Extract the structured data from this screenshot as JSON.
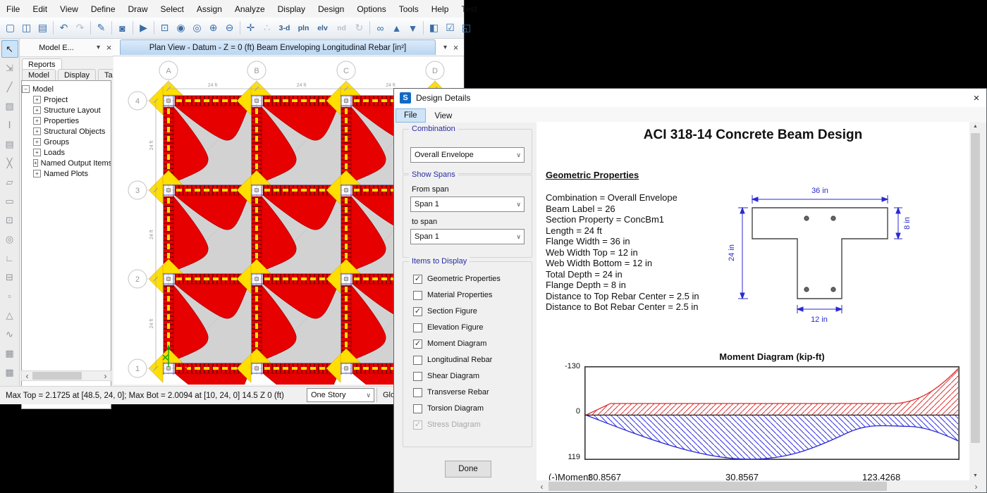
{
  "app": {
    "menubar": [
      "File",
      "Edit",
      "View",
      "Define",
      "Draw",
      "Select",
      "Assign",
      "Analyze",
      "Display",
      "Design",
      "Options",
      "Tools",
      "Help",
      "Test"
    ],
    "toolbar_icons": [
      {
        "name": "new-model-icon",
        "glyph": "▢"
      },
      {
        "name": "open-file-icon",
        "glyph": "◫"
      },
      {
        "name": "save-icon",
        "glyph": "▤"
      },
      {
        "name": "separator",
        "sep": true
      },
      {
        "name": "undo-icon",
        "glyph": "↶"
      },
      {
        "name": "redo-icon",
        "glyph": "↷",
        "disabled": true
      },
      {
        "name": "separator",
        "sep": true
      },
      {
        "name": "pencil-edit-icon",
        "glyph": "✎"
      },
      {
        "name": "separator",
        "sep": true
      },
      {
        "name": "lock-model-icon",
        "glyph": "◙"
      },
      {
        "name": "separator",
        "sep": true
      },
      {
        "name": "run-analysis-icon",
        "glyph": "▶"
      },
      {
        "name": "separator",
        "sep": true
      },
      {
        "name": "zoom-window-icon",
        "glyph": "⊡"
      },
      {
        "name": "zoom-extents-icon",
        "glyph": "◉"
      },
      {
        "name": "zoom-previous-icon",
        "glyph": "◎"
      },
      {
        "name": "zoom-in-icon",
        "glyph": "⊕"
      },
      {
        "name": "zoom-out-icon",
        "glyph": "⊖"
      },
      {
        "name": "separator",
        "sep": true
      },
      {
        "name": "pan-icon",
        "glyph": "✛"
      },
      {
        "name": "perspective-steps-icon",
        "glyph": "∴",
        "disabled": true
      },
      {
        "name": "view-3d-icon",
        "glyph": "3-d",
        "text": true
      },
      {
        "name": "view-plan-icon",
        "glyph": "pln",
        "text": true
      },
      {
        "name": "view-elevation-icon",
        "glyph": "elv",
        "text": true
      },
      {
        "name": "view-named-icon",
        "glyph": "nd",
        "text": true,
        "disabled": true
      },
      {
        "name": "restore-view-icon",
        "glyph": "↻",
        "disabled": true
      },
      {
        "name": "separator",
        "sep": true
      },
      {
        "name": "view-options-glasses-icon",
        "glyph": "∞"
      },
      {
        "name": "move-up-story-icon",
        "glyph": "▲"
      },
      {
        "name": "move-down-story-icon",
        "glyph": "▼"
      },
      {
        "name": "separator",
        "sep": true
      },
      {
        "name": "arrange-windows-icon",
        "glyph": "◧"
      },
      {
        "name": "select-check-icon",
        "glyph": "☑"
      },
      {
        "name": "extrude-view-icon",
        "glyph": "◱"
      }
    ],
    "left_toolbar_icons": [
      {
        "name": "select-pointer-icon",
        "glyph": "↖",
        "active": true
      },
      {
        "name": "reshape-object-icon",
        "glyph": "⇲"
      },
      {
        "name": "draw-line-icon",
        "glyph": "╱"
      },
      {
        "name": "draw-frame-icon",
        "glyph": "▨"
      },
      {
        "name": "draw-dimension-icon",
        "glyph": "Ⅰ"
      },
      {
        "name": "draw-grid-icon",
        "glyph": "▤"
      },
      {
        "name": "draw-brace-icon",
        "glyph": "╳"
      },
      {
        "name": "draw-area-icon",
        "glyph": "▱"
      },
      {
        "name": "draw-rect-area-icon",
        "glyph": "▭"
      },
      {
        "name": "draw-point-area-icon",
        "glyph": "⊡"
      },
      {
        "name": "draw-circle-area-icon",
        "glyph": "◎"
      },
      {
        "name": "draw-wall-icon",
        "glyph": "∟"
      },
      {
        "name": "draw-wall-opening-icon",
        "glyph": "⊟"
      },
      {
        "name": "draw-point-icon",
        "glyph": "▫"
      },
      {
        "name": "draw-tower-icon",
        "glyph": "△"
      },
      {
        "name": "draw-tendon-icon",
        "glyph": "∿"
      },
      {
        "name": "snap-grid-icon",
        "glyph": "▦"
      },
      {
        "name": "snap-fine-grid-icon",
        "glyph": "▩"
      }
    ],
    "model_explorer": {
      "title": "Model E...",
      "tab_reports": "Reports",
      "tabs": [
        "Model",
        "Display",
        "Tables"
      ],
      "tree_root": "Model",
      "tree_items": [
        "Project",
        "Structure Layout",
        "Properties",
        "Structural Objects",
        "Groups",
        "Loads",
        "Named Output Items",
        "Named Plots"
      ]
    },
    "plan_view": {
      "title": "Plan View - Datum - Z = 0 (ft)  Beam Enveloping Longitudinal Rebar  [in²]",
      "grid_cols": [
        "A",
        "B",
        "C",
        "D"
      ],
      "grid_rows": [
        "4",
        "3",
        "2",
        "1"
      ],
      "span_label": "24 ft"
    },
    "statusbar": {
      "text": "Max Top = 2.1725 at [48.5, 24, 0];  Max Bot = 2.0094 at [10, 24, 0]   14.5  Z 0 (ft)",
      "story_selector": "One Story",
      "coord_system": "Global"
    }
  },
  "dialog": {
    "logo_letter": "S",
    "title": "Design Details",
    "menus": [
      "File",
      "View"
    ],
    "combination": {
      "label": "Combination",
      "value": "Overall Envelope"
    },
    "show_spans": {
      "label": "Show Spans",
      "from_label": "From span",
      "from_value": "Span 1",
      "to_label": "to span",
      "to_value": "Span 1"
    },
    "items_to_display": {
      "label": "Items to Display",
      "options": [
        {
          "name": "checkbox-geometric-properties",
          "label": "Geometric Properties",
          "checked": true
        },
        {
          "name": "checkbox-material-properties",
          "label": "Material Properties",
          "checked": false
        },
        {
          "name": "checkbox-section-figure",
          "label": "Section Figure",
          "checked": true
        },
        {
          "name": "checkbox-elevation-figure",
          "label": "Elevation Figure",
          "checked": false
        },
        {
          "name": "checkbox-moment-diagram",
          "label": "Moment Diagram",
          "checked": true
        },
        {
          "name": "checkbox-longitudinal-rebar",
          "label": "Longitudinal Rebar",
          "checked": false
        },
        {
          "name": "checkbox-shear-diagram",
          "label": "Shear Diagram",
          "checked": false
        },
        {
          "name": "checkbox-transverse-rebar",
          "label": "Transverse Rebar",
          "checked": false
        },
        {
          "name": "checkbox-torsion-diagram",
          "label": "Torsion Diagram",
          "checked": false
        },
        {
          "name": "checkbox-stress-diagram",
          "label": "Stress Diagram",
          "checked": true,
          "disabled": true
        }
      ]
    },
    "done_label": "Done"
  },
  "report": {
    "title": "ACI 318-14 Concrete Beam Design",
    "section_heading": "Geometric Properties",
    "properties": [
      "Combination = Overall Envelope",
      "Beam Label = 26",
      "Section Property = ConcBm1",
      "Length = 24 ft",
      "Flange Width = 36 in",
      "Web Width Top = 12 in",
      "Web Width Bottom = 12 in",
      "Total Depth = 24 in",
      "Flange Depth = 8 in",
      "Distance to Top Rebar Center = 2.5 in",
      "Distance to Bot Rebar Center = 2.5 in"
    ],
    "section_figure": {
      "dim_top": "36 in",
      "dim_right": "8 in",
      "dim_left": "24 in",
      "dim_bottom": "12 in"
    },
    "moment_diagram": {
      "title": "Moment Diagram (kip-ft)",
      "y_top": "-130",
      "y_zero": "0",
      "y_bottom": "119",
      "row_label": "(-)Moment",
      "row_values": [
        "30.8567",
        "30.8567",
        "123.4268"
      ]
    }
  },
  "colors": {
    "envelope_red": "#e60000",
    "envelope_yellow": "#ffdf00",
    "beam_edge_blue": "#4646d8",
    "slab_gray": "#d2d2d2",
    "dimension_blue": "#2a2ad0",
    "moment_negative_red": "#e03030",
    "moment_positive_blue": "#3030dd"
  }
}
